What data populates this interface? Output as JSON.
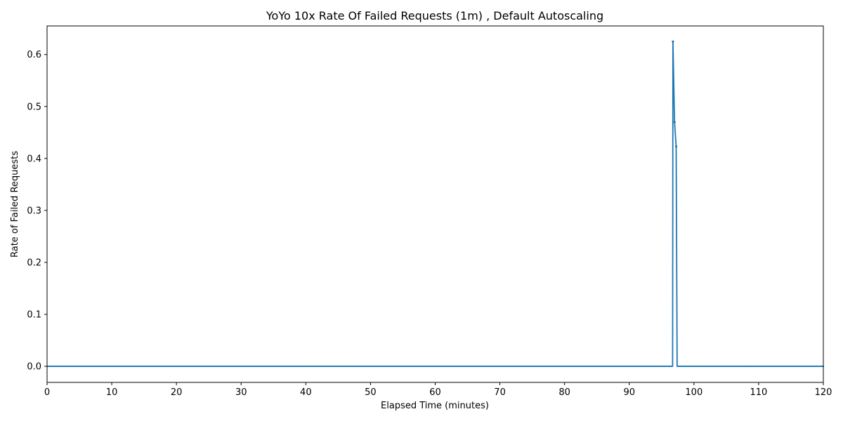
{
  "chart_data": {
    "type": "line",
    "title": "YoYo 10x Rate Of Failed Requests (1m) , Default Autoscaling",
    "xlabel": "Elapsed Time (minutes)",
    "ylabel": "Rate of Failed Requests",
    "xlim": [
      0,
      120
    ],
    "ylim": [
      -0.031,
      0.655
    ],
    "xticks": [
      0,
      10,
      20,
      30,
      40,
      50,
      60,
      70,
      80,
      90,
      100,
      110,
      120
    ],
    "yticks": [
      0.0,
      0.1,
      0.2,
      0.3,
      0.4,
      0.5,
      0.6
    ],
    "ytick_labels": [
      "0.0",
      "0.1",
      "0.2",
      "0.3",
      "0.4",
      "0.5",
      "0.6"
    ],
    "grid": false,
    "legend": false,
    "color": "#1f77b4",
    "series": [
      {
        "x": [
          0,
          96.5,
          96.7,
          96.75,
          97.0,
          97.25,
          97.4,
          120
        ],
        "y": [
          0,
          0,
          0,
          0.625,
          0.47,
          0.423,
          0,
          0
        ]
      }
    ]
  }
}
